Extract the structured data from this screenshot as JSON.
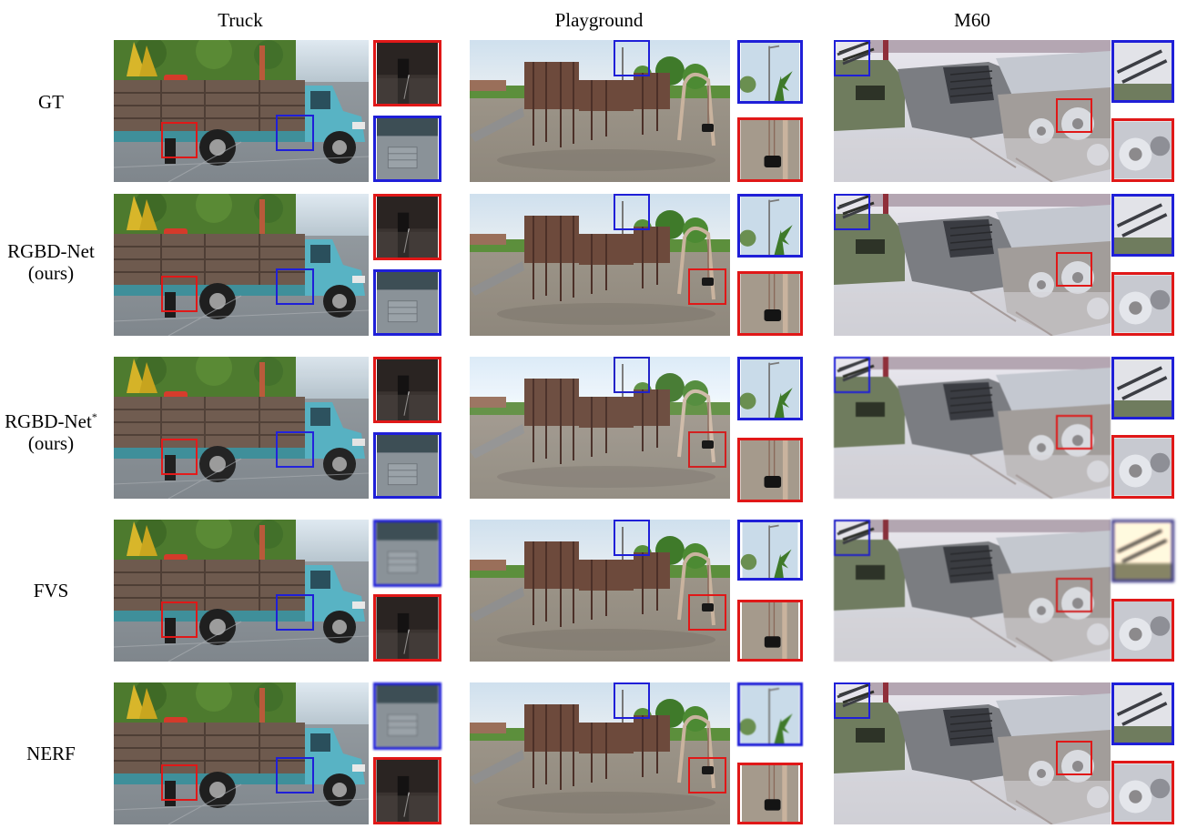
{
  "columns": [
    {
      "id": "truck",
      "title": "Truck"
    },
    {
      "id": "playground",
      "title": "Playground"
    },
    {
      "id": "m60",
      "title": "M60"
    }
  ],
  "rows": [
    {
      "id": "gt",
      "line1": "GT",
      "line2": "",
      "sup": ""
    },
    {
      "id": "rgbd",
      "line1": "RGBD-Net",
      "line2": "(ours)",
      "sup": ""
    },
    {
      "id": "rgbd-star",
      "line1": "RGBD-Net",
      "line2": "(ours)",
      "sup": "*"
    },
    {
      "id": "fvs",
      "line1": "FVS",
      "line2": "",
      "sup": ""
    },
    {
      "id": "nerf",
      "line1": "NERF",
      "line2": "",
      "sup": ""
    }
  ],
  "colors": {
    "highlight_red": "#e01818",
    "highlight_blue": "#1f1fd8"
  }
}
